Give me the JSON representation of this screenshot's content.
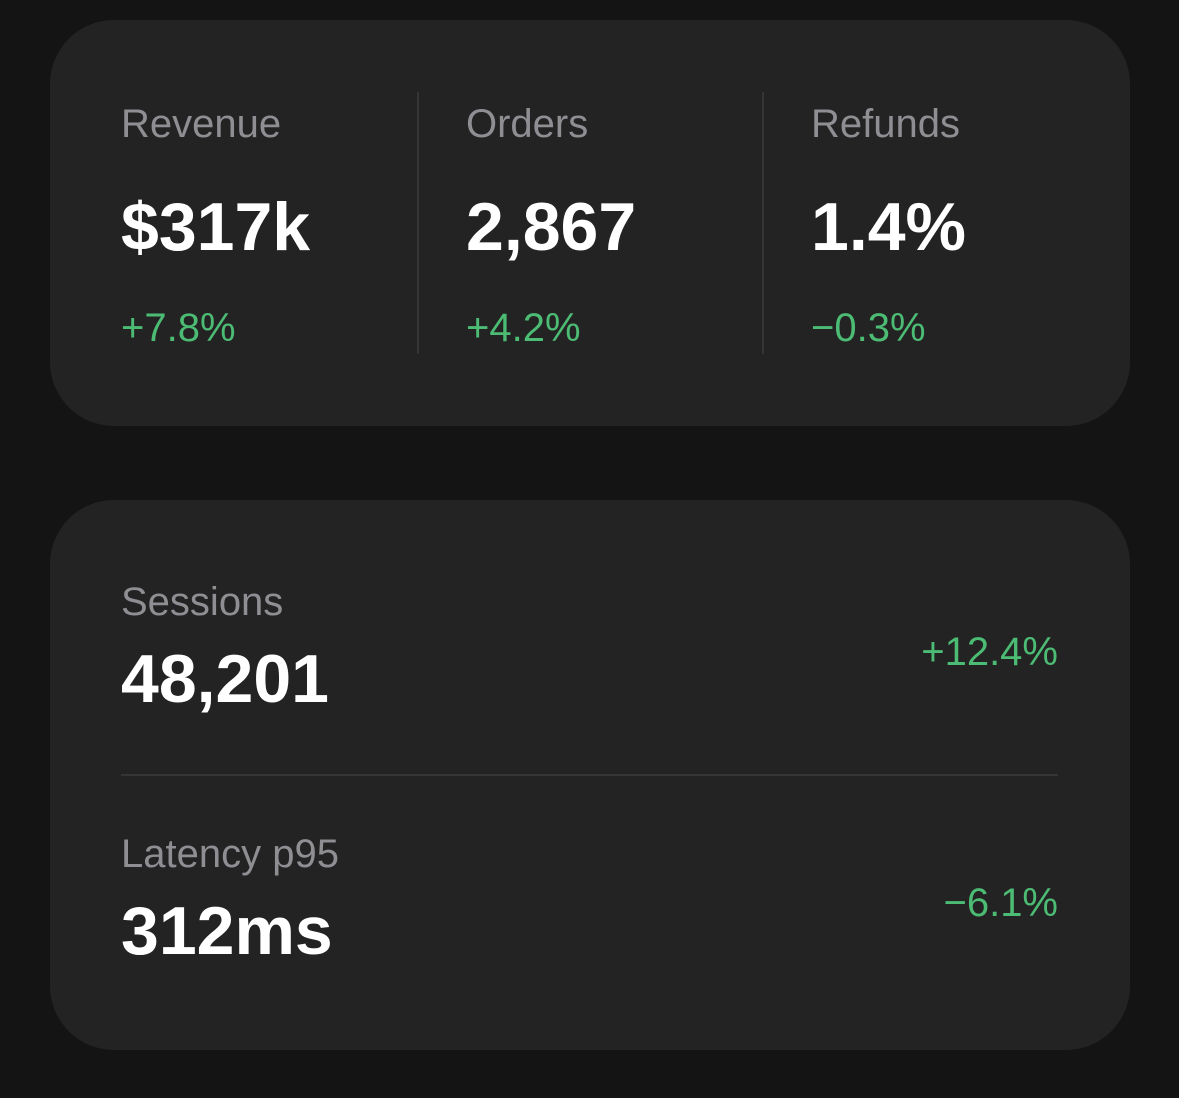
{
  "summary": {
    "metrics": [
      {
        "label": "Revenue",
        "value": "$317k",
        "delta": "+7.8%"
      },
      {
        "label": "Orders",
        "value": "2,867",
        "delta": "+4.2%"
      },
      {
        "label": "Refunds",
        "value": "1.4%",
        "delta": "−0.3%"
      }
    ]
  },
  "details": {
    "rows": [
      {
        "label": "Sessions",
        "value": "48,201",
        "delta": "+12.4%"
      },
      {
        "label": "Latency p95",
        "value": "312ms",
        "delta": "−6.1%"
      }
    ]
  },
  "colors": {
    "background": "#141414",
    "card": "#232323",
    "label": "#8e8e93",
    "value": "#ffffff",
    "positive": "#4cbb74",
    "divider": "#353535"
  }
}
